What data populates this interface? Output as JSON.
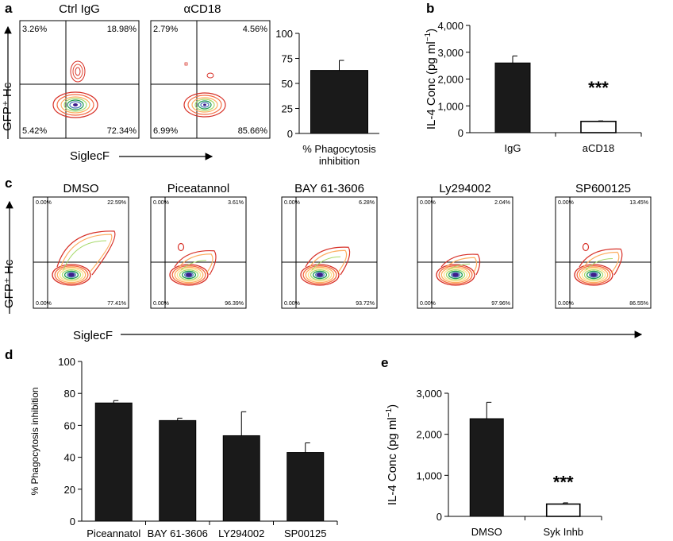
{
  "panel_a": {
    "letter": "a",
    "plots": [
      {
        "title": "Ctrl IgG",
        "q_ul": "3.26%",
        "q_ur": "18.98%",
        "q_ll": "5.42%",
        "q_lr": "72.34%"
      },
      {
        "title": "αCD18",
        "q_ul": "2.79%",
        "q_ur": "4.56%",
        "q_ll": "6.99%",
        "q_lr": "85.66%"
      }
    ],
    "y_axis_label": "GFP⁺ Hc",
    "x_axis_label": "SiglecF"
  },
  "panel_c": {
    "letter": "c",
    "plots": [
      {
        "title": "DMSO",
        "q_ul": "0.00%",
        "q_ur": "22.59%",
        "q_ll": "0.00%",
        "q_lr": "77.41%"
      },
      {
        "title": "Piceatannol",
        "q_ul": "0.00%",
        "q_ur": "3.61%",
        "q_ll": "0.00%",
        "q_lr": "96.39%"
      },
      {
        "title": "BAY 61-3606",
        "q_ul": "0.00%",
        "q_ur": "6.28%",
        "q_ll": "0.00%",
        "q_lr": "93.72%"
      },
      {
        "title": "Ly294002",
        "q_ul": "0.00%",
        "q_ur": "2.04%",
        "q_ll": "0.00%",
        "q_lr": "97.96%"
      },
      {
        "title": "SP600125",
        "q_ul": "0.00%",
        "q_ur": "13.45%",
        "q_ll": "0.00%",
        "q_lr": "86.55%"
      }
    ],
    "y_axis_label": "GFP⁺ Hc",
    "x_axis_label": "SiglecF"
  },
  "colors": {
    "bar_fill": "#1a1a1a",
    "open_bar": "#ffffff",
    "contour_outer": "#d73027",
    "contour_inner": "#3f1d8c"
  },
  "chart_data": [
    {
      "id": "a-bar",
      "type": "bar",
      "categories": [
        "% Phagocytosis\ninhibition"
      ],
      "values": [
        63
      ],
      "errors": [
        10
      ],
      "ylim": [
        0,
        100
      ],
      "yticks": [
        0,
        25,
        50,
        75,
        100
      ],
      "ytick_labels": [
        "0",
        "25",
        "50",
        "75",
        "100"
      ],
      "ylabel": "",
      "xlabel": ""
    },
    {
      "id": "b",
      "letter": "b",
      "type": "bar",
      "categories": [
        "IgG",
        "aCD18"
      ],
      "values": [
        2600,
        420
      ],
      "errors": [
        260,
        20
      ],
      "open_bars": [
        false,
        true
      ],
      "ylim": [
        0,
        4000
      ],
      "yticks": [
        0,
        1000,
        2000,
        3000,
        4000
      ],
      "ytick_labels": [
        "0",
        "1,000",
        "2,000",
        "3,000",
        "4,000"
      ],
      "ylabel": "IL-4 Conc (pg ml",
      "ylabel_sup": "−1",
      "ylabel_end": ")",
      "annotation": "***"
    },
    {
      "id": "d",
      "letter": "d",
      "type": "bar",
      "categories": [
        "Piceannatol",
        "BAY 61-3606",
        "LY294002",
        "SP00125"
      ],
      "values": [
        74,
        63,
        53.5,
        43
      ],
      "errors": [
        1.5,
        1.5,
        15,
        6
      ],
      "ylim": [
        0,
        100
      ],
      "yticks": [
        0,
        20,
        40,
        60,
        80,
        100
      ],
      "ytick_labels": [
        "0",
        "20",
        "40",
        "60",
        "80",
        "100"
      ],
      "ylabel": "% Phagocytosis inhibition"
    },
    {
      "id": "e",
      "letter": "e",
      "type": "bar",
      "categories": [
        "DMSO",
        "Syk Inhb"
      ],
      "values": [
        2380,
        300
      ],
      "errors": [
        400,
        30
      ],
      "open_bars": [
        false,
        true
      ],
      "ylim": [
        0,
        3000
      ],
      "yticks": [
        0,
        1000,
        2000,
        3000
      ],
      "ytick_labels": [
        "0",
        "1,000",
        "2,000",
        "3,000"
      ],
      "ylabel": "IL-4 Conc (pg ml",
      "ylabel_sup": "−1",
      "ylabel_end": ")",
      "annotation": "***"
    }
  ]
}
